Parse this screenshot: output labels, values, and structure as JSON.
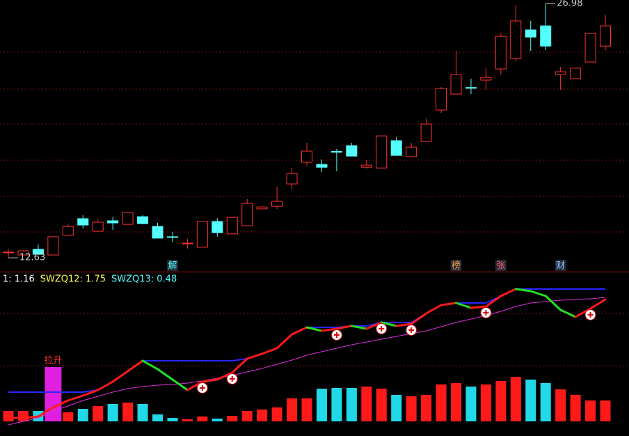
{
  "chart_data": [
    {
      "type": "candlestick",
      "ylim": [
        11.85,
        27.18
      ],
      "open": [
        12.95,
        12.79,
        13.11,
        12.79,
        13.9,
        14.84,
        14.13,
        14.72,
        14.52,
        14.95,
        14.4,
        13.82,
        13.44,
        13.23,
        14.68,
        13.98,
        14.44,
        15.39,
        15.54,
        16.8,
        18.02,
        17.9,
        18.63,
        18.96,
        17.74,
        17.7,
        19.24,
        18.34,
        19.2,
        20.97,
        21.87,
        22.24,
        22.66,
        23.29,
        23.88,
        25.49,
        25.72,
        22.97,
        22.74,
        23.68,
        24.58
      ],
      "high": [
        13.11,
        13.03,
        13.39,
        13.82,
        14.52,
        15.03,
        14.8,
        14.95,
        15.19,
        15.03,
        14.6,
        14.09,
        13.7,
        14.68,
        14.87,
        14.91,
        15.94,
        15.54,
        16.64,
        17.7,
        19.12,
        18.18,
        18.77,
        19.12,
        18.14,
        19.51,
        19.47,
        19.12,
        20.49,
        22.26,
        24.31,
        22.74,
        23.36,
        25.29,
        26.9,
        26.0,
        26.98,
        23.4,
        23.33,
        25.29,
        26.35
      ],
      "low": [
        12.63,
        12.79,
        12.79,
        12.79,
        13.9,
        14.29,
        14.13,
        14.21,
        14.52,
        14.52,
        13.74,
        13.5,
        13.15,
        13.23,
        13.82,
        13.98,
        14.44,
        15.39,
        15.39,
        16.49,
        17.82,
        17.47,
        17.51,
        18.37,
        17.66,
        17.7,
        18.41,
        18.34,
        19.2,
        20.81,
        21.87,
        21.87,
        22.11,
        22.97,
        23.72,
        24.31,
        24.35,
        22.11,
        22.74,
        23.68,
        24.35
      ],
      "close": [
        12.95,
        13.03,
        12.83,
        13.82,
        14.4,
        14.48,
        14.64,
        14.6,
        15.19,
        14.56,
        13.74,
        13.8,
        13.46,
        14.68,
        14.05,
        14.91,
        15.7,
        15.5,
        15.82,
        17.39,
        18.65,
        17.74,
        18.61,
        18.37,
        17.86,
        19.51,
        18.41,
        18.88,
        20.18,
        22.19,
        22.97,
        22.22,
        22.81,
        25.13,
        26.0,
        25.09,
        24.58,
        23.13,
        23.33,
        25.29,
        25.72
      ],
      "up_color": "#ff3232",
      "down_color": "#54ffff",
      "max_label": 26.98,
      "min_label": 12.63,
      "events": [
        {
          "index": 11,
          "label": "解",
          "color": "#54ffff"
        },
        {
          "index": 30,
          "label": "榜",
          "color": "#ffa040"
        },
        {
          "index": 33,
          "label": "张",
          "color": "#ff6060"
        },
        {
          "index": 37,
          "label": "财",
          "color": "#a0c8ff"
        }
      ]
    },
    {
      "type": "indicator",
      "ylim": [
        -0.21,
        2.14
      ],
      "legend": [
        {
          "text": "1: 1.16",
          "color": "#ffffff"
        },
        {
          "text": "SWZQ12: 1.75",
          "color": "#ffff50"
        },
        {
          "text": "SWZQ13: 0.48",
          "color": "#54ffff"
        }
      ],
      "main": [
        0.05,
        0.05,
        0.07,
        0.2,
        0.3,
        0.37,
        0.45,
        0.57,
        0.72,
        0.87,
        0.75,
        0.6,
        0.45,
        0.57,
        0.6,
        0.7,
        0.9,
        0.97,
        1.05,
        1.25,
        1.35,
        1.3,
        1.33,
        1.37,
        1.33,
        1.42,
        1.37,
        1.4,
        1.55,
        1.67,
        1.7,
        1.63,
        1.65,
        1.8,
        1.9,
        1.87,
        1.8,
        1.6,
        1.5,
        1.62,
        1.75
      ],
      "up_color": "#ff1a1a",
      "down_color": "#22e022",
      "band": [
        0.42,
        0.42,
        0.42,
        0.42,
        0.42,
        0.42,
        0.45,
        0.57,
        0.72,
        0.87,
        0.87,
        0.87,
        0.87,
        0.87,
        0.87,
        0.87,
        0.9,
        0.97,
        1.05,
        1.25,
        1.35,
        1.35,
        1.35,
        1.37,
        1.37,
        1.42,
        1.42,
        1.42,
        1.55,
        1.67,
        1.7,
        1.7,
        1.7,
        1.8,
        1.9,
        1.9,
        1.9,
        1.9,
        1.9,
        1.9,
        1.9
      ],
      "band_color": "#2828ff",
      "trend": [
        -0.05,
        0.0,
        0.05,
        0.15,
        0.22,
        0.3,
        0.36,
        0.42,
        0.47,
        0.5,
        0.52,
        0.53,
        0.55,
        0.58,
        0.62,
        0.66,
        0.71,
        0.76,
        0.82,
        0.88,
        0.95,
        1.0,
        1.05,
        1.1,
        1.14,
        1.18,
        1.22,
        1.26,
        1.3,
        1.36,
        1.42,
        1.47,
        1.52,
        1.58,
        1.65,
        1.7,
        1.72,
        1.74,
        1.75,
        1.76,
        1.78
      ],
      "trend_color": "#e030e0",
      "volume": [
        0.15,
        0.15,
        0.15,
        0.07,
        0.13,
        0.18,
        0.22,
        0.25,
        0.27,
        0.25,
        0.1,
        0.05,
        0.03,
        0.07,
        0.04,
        0.08,
        0.15,
        0.17,
        0.2,
        0.33,
        0.33,
        0.47,
        0.48,
        0.48,
        0.5,
        0.47,
        0.38,
        0.36,
        0.38,
        0.53,
        0.55,
        0.5,
        0.53,
        0.58,
        0.64,
        0.6,
        0.55,
        0.46,
        0.38,
        0.3,
        0.3
      ],
      "volume_up_color": "#ff1a1a",
      "volume_down_color": "#20d8e8",
      "signals": [
        13,
        15,
        22,
        25,
        27,
        32,
        39
      ],
      "boost": {
        "index": 3,
        "value": 0.78,
        "label": "拉升",
        "color": "#e020e0"
      }
    }
  ]
}
